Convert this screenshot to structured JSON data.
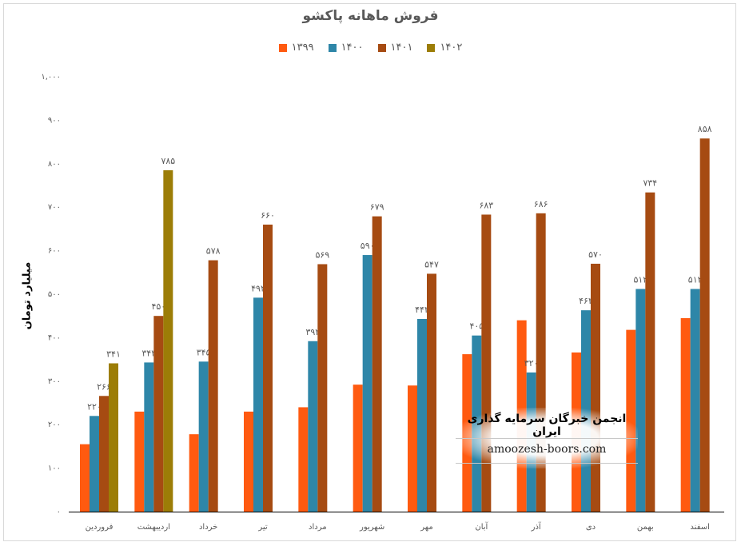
{
  "chart_data": {
    "type": "bar",
    "title": "فروش ماهانه پاکشو",
    "ylabel": "میلیارد تومان",
    "xlabel": "",
    "ylim": [
      0,
      1000
    ],
    "yticks": [
      0,
      100,
      200,
      300,
      400,
      500,
      600,
      700,
      800,
      900,
      1000
    ],
    "ytick_labels": [
      "۰",
      "۱۰۰",
      "۲۰۰",
      "۳۰۰",
      "۴۰۰",
      "۵۰۰",
      "۶۰۰",
      "۷۰۰",
      "۸۰۰",
      "۹۰۰",
      "۱,۰۰۰"
    ],
    "grid": false,
    "legend_position": "top",
    "categories": [
      "فروردین",
      "اردیبهشت",
      "خرداد",
      "تیر",
      "مرداد",
      "شهریور",
      "مهر",
      "آبان",
      "آذر",
      "دی",
      "بهمن",
      "اسفند"
    ],
    "series": [
      {
        "name": "۱۳۹۹",
        "color": "#ff5a10",
        "values": [
          155,
          230,
          178,
          230,
          240,
          292,
          290,
          362,
          440,
          366,
          418,
          445
        ],
        "labels": [
          null,
          null,
          null,
          null,
          null,
          null,
          null,
          null,
          null,
          null,
          null,
          null
        ]
      },
      {
        "name": "۱۴۰۰",
        "color": "#2e86a8",
        "values": [
          220,
          343,
          345,
          492,
          392,
          590,
          443,
          405,
          320,
          463,
          512,
          512
        ],
        "labels": [
          "۲۲۰",
          "۳۴۳",
          "۳۴۵",
          "۴۹۲",
          "۳۹۲",
          "۵۹۰",
          "۴۴۳",
          "۴۰۵",
          "۳۲۰",
          "۴۶۳",
          "۵۱۲",
          "۵۱۲"
        ]
      },
      {
        "name": "۱۴۰۱",
        "color": "#a64b12",
        "values": [
          266,
          450,
          578,
          660,
          569,
          679,
          547,
          683,
          686,
          570,
          734,
          858
        ],
        "labels": [
          "۲۶۶",
          "۴۵۰",
          "۵۷۸",
          "۶۶۰",
          "۵۶۹",
          "۶۷۹",
          "۵۴۷",
          "۶۸۳",
          "۶۸۶",
          "۵۷۰",
          "۷۳۴",
          "۸۵۸"
        ]
      },
      {
        "name": "۱۴۰۲",
        "color": "#9c7d07",
        "values": [
          341,
          785,
          null,
          null,
          null,
          null,
          null,
          null,
          null,
          null,
          null,
          null
        ],
        "labels": [
          "۳۴۱",
          "۷۸۵",
          null,
          null,
          null,
          null,
          null,
          null,
          null,
          null,
          null,
          null
        ]
      }
    ]
  },
  "watermark": {
    "title": "انجمن خبرگان سرمایه گذاری ایران",
    "url": "amoozesh-boors.com"
  }
}
